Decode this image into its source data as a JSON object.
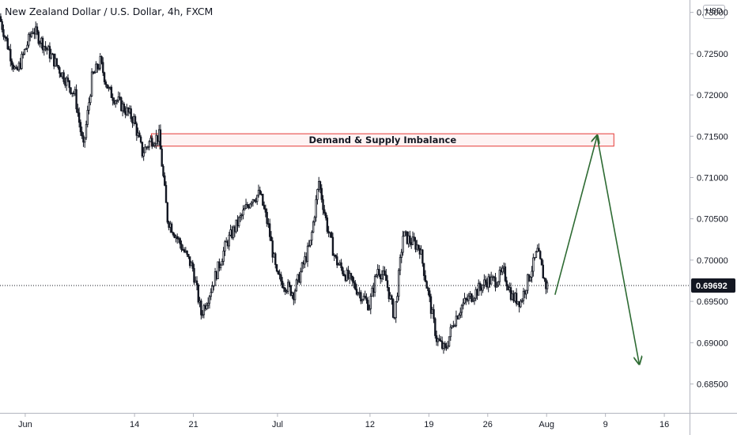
{
  "chart_data": {
    "type": "candlestick",
    "title": "New Zealand Dollar / U.S. Dollar, 4h, FXCM",
    "currency": "USD",
    "ylim": [
      0.6815,
      0.7315
    ],
    "y_ticks": [
      "0.73000",
      "0.72500",
      "0.72000",
      "0.71500",
      "0.71000",
      "0.70500",
      "0.70000",
      "0.69500",
      "0.69000",
      "0.68500"
    ],
    "y_tick_values": [
      0.73,
      0.725,
      0.72,
      0.715,
      0.71,
      0.705,
      0.7,
      0.695,
      0.69,
      0.685
    ],
    "x_ticks": [
      "Jun",
      "14",
      "21",
      "Jul",
      "12",
      "19",
      "26",
      "Aug",
      "9",
      "16"
    ],
    "x_tick_dates": [
      "2021-06-01",
      "2021-06-14",
      "2021-06-21",
      "2021-07-01",
      "2021-07-12",
      "2021-07-19",
      "2021-07-26",
      "2021-08-02",
      "2021-08-09",
      "2021-08-16"
    ],
    "date_range": [
      "2021-05-29",
      "2021-08-19"
    ],
    "last_price": "0.69692",
    "last_price_value": 0.69692,
    "price_path": [
      [
        "2021-05-29",
        0.7295
      ],
      [
        "2021-05-31",
        0.7225
      ],
      [
        "2021-06-02",
        0.728
      ],
      [
        "2021-06-04",
        0.725
      ],
      [
        "2021-06-07",
        0.72
      ],
      [
        "2021-06-08",
        0.7135
      ],
      [
        "2021-06-09",
        0.722
      ],
      [
        "2021-06-10",
        0.724
      ],
      [
        "2021-06-11",
        0.7205
      ],
      [
        "2021-06-14",
        0.717
      ],
      [
        "2021-06-15",
        0.713
      ],
      [
        "2021-06-16",
        0.7145
      ],
      [
        "2021-06-17",
        0.715
      ],
      [
        "2021-06-18",
        0.705
      ],
      [
        "2021-06-21",
        0.699
      ],
      [
        "2021-06-22",
        0.6935
      ],
      [
        "2021-06-23",
        0.696
      ],
      [
        "2021-06-25",
        0.702
      ],
      [
        "2021-06-28",
        0.7075
      ],
      [
        "2021-06-29",
        0.708
      ],
      [
        "2021-06-30",
        0.704
      ],
      [
        "2021-07-01",
        0.698
      ],
      [
        "2021-07-03",
        0.696
      ],
      [
        "2021-07-05",
        0.702
      ],
      [
        "2021-07-06",
        0.7095
      ],
      [
        "2021-07-07",
        0.704
      ],
      [
        "2021-07-08",
        0.7
      ],
      [
        "2021-07-09",
        0.6985
      ],
      [
        "2021-07-12",
        0.6945
      ],
      [
        "2021-07-13",
        0.699
      ],
      [
        "2021-07-14",
        0.6975
      ],
      [
        "2021-07-15",
        0.693
      ],
      [
        "2021-07-16",
        0.703
      ],
      [
        "2021-07-18",
        0.7015
      ],
      [
        "2021-07-19",
        0.696
      ],
      [
        "2021-07-20",
        0.6905
      ],
      [
        "2021-07-21",
        0.689
      ],
      [
        "2021-07-22",
        0.6925
      ],
      [
        "2021-07-23",
        0.6945
      ],
      [
        "2021-07-26",
        0.6975
      ],
      [
        "2021-07-27",
        0.6975
      ],
      [
        "2021-07-28",
        0.6985
      ],
      [
        "2021-07-29",
        0.6955
      ],
      [
        "2021-07-30",
        0.695
      ],
      [
        "2021-07-31",
        0.698
      ],
      [
        "2021-08-01",
        0.701
      ],
      [
        "2021-08-02",
        0.6969
      ]
    ],
    "annotations": {
      "zone": {
        "label": "Demand & Supply Imbalance",
        "low": 0.7138,
        "high": 0.7153,
        "from": "2021-06-16",
        "to": "2021-08-10"
      },
      "projection": [
        [
          "2021-08-03",
          0.6958
        ],
        [
          "2021-08-08",
          0.715
        ],
        [
          "2021-08-13",
          0.6875
        ]
      ]
    },
    "colors": {
      "candle": "#131722",
      "zone_border": "#e53935",
      "zone_fill": "#fde9ea",
      "arrow": "#2e6b33",
      "label_bg": "#131722",
      "label_text": "#ffffff",
      "axis_text": "#131722",
      "axis_line": "#b2b5be"
    }
  }
}
